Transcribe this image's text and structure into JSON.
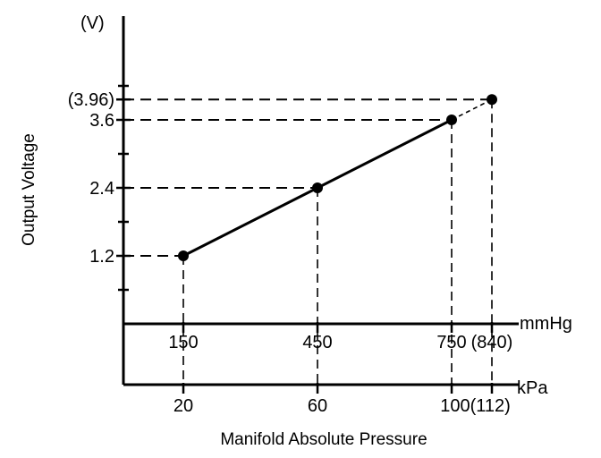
{
  "chart_data": {
    "type": "line",
    "y_axis": {
      "unit_label": "(V)",
      "title": "Output Voltage",
      "ticks": [
        "1.2",
        "2.4",
        "3.6",
        "(3.96)"
      ],
      "tick_values": [
        1.2,
        2.4,
        3.6,
        3.96
      ],
      "minor_ticks": [
        0.6,
        1.8,
        3.0,
        4.2
      ],
      "range": [
        0,
        4.2
      ]
    },
    "x_axis_mmhg": {
      "unit_label": "mmHg",
      "ticks": [
        "150",
        "450",
        "750",
        "(840)"
      ],
      "tick_values": [
        150,
        450,
        750,
        840
      ]
    },
    "x_axis_kpa": {
      "unit_label": "kPa",
      "ticks": [
        "20",
        "60",
        "100(112)"
      ],
      "tick_values": [
        20,
        60,
        100
      ],
      "title": "Manifold Absolute Pressure"
    },
    "series": [
      {
        "x_mmhg": [
          150,
          450,
          750
        ],
        "x_kpa": [
          20,
          60,
          100
        ],
        "y": [
          1.2,
          2.4,
          3.6
        ]
      }
    ],
    "extrapolated_point": {
      "x_mmhg": 840,
      "x_kpa": 112,
      "y": 3.96
    },
    "grid": false
  }
}
